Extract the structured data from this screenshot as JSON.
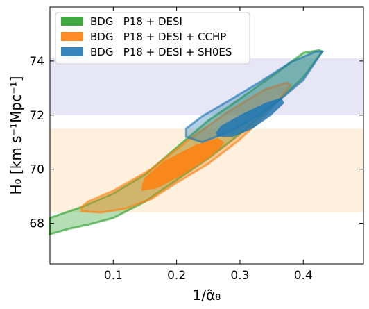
{
  "chart_data": {
    "type": "contour",
    "xlabel": "1/α̃₈",
    "ylabel": "H₀ [km s⁻¹Mpc⁻¹]",
    "xlim": [
      0.0,
      0.495
    ],
    "ylim": [
      66.5,
      76.0
    ],
    "x_ticks": [
      0.1,
      0.2,
      0.3,
      0.4
    ],
    "y_ticks": [
      68,
      70,
      72,
      74
    ],
    "grid": false,
    "legend_position": "top-left",
    "bands": [
      {
        "name": "upper band",
        "y_range": [
          72.0,
          74.1
        ],
        "color": "#e6e6f4"
      },
      {
        "name": "lower band",
        "y_range": [
          68.4,
          71.5
        ],
        "color": "#fff0dd"
      }
    ],
    "series": [
      {
        "name": "BDG   P18 + DESI",
        "color": "#2ca02c",
        "outer_contour": [
          [
            0.0,
            67.6
          ],
          [
            0.03,
            67.8
          ],
          [
            0.06,
            67.95
          ],
          [
            0.1,
            68.2
          ],
          [
            0.15,
            68.8
          ],
          [
            0.2,
            69.6
          ],
          [
            0.25,
            70.4
          ],
          [
            0.3,
            71.3
          ],
          [
            0.35,
            72.3
          ],
          [
            0.4,
            73.4
          ],
          [
            0.43,
            74.35
          ],
          [
            0.425,
            74.4
          ],
          [
            0.4,
            74.3
          ],
          [
            0.36,
            73.6
          ],
          [
            0.3,
            72.6
          ],
          [
            0.25,
            71.8
          ],
          [
            0.2,
            70.8
          ],
          [
            0.15,
            69.8
          ],
          [
            0.1,
            69.1
          ],
          [
            0.05,
            68.6
          ],
          [
            0.0,
            68.2
          ]
        ],
        "inner_contour": []
      },
      {
        "name": "BDG   P18 + DESI + CCHP",
        "color": "#ff7f0e",
        "outer_contour": [
          [
            0.05,
            68.45
          ],
          [
            0.08,
            68.4
          ],
          [
            0.12,
            68.55
          ],
          [
            0.16,
            68.9
          ],
          [
            0.2,
            69.5
          ],
          [
            0.25,
            70.2
          ],
          [
            0.3,
            71.1
          ],
          [
            0.34,
            72.0
          ],
          [
            0.37,
            72.8
          ],
          [
            0.38,
            73.1
          ],
          [
            0.375,
            73.2
          ],
          [
            0.34,
            72.95
          ],
          [
            0.28,
            72.1
          ],
          [
            0.22,
            71.1
          ],
          [
            0.16,
            70.0
          ],
          [
            0.1,
            69.2
          ],
          [
            0.06,
            68.8
          ],
          [
            0.05,
            68.6
          ]
        ],
        "inner_contour": [
          [
            0.145,
            69.2
          ],
          [
            0.17,
            69.3
          ],
          [
            0.21,
            69.8
          ],
          [
            0.25,
            70.4
          ],
          [
            0.27,
            70.8
          ],
          [
            0.275,
            71.0
          ],
          [
            0.265,
            71.15
          ],
          [
            0.23,
            70.9
          ],
          [
            0.18,
            70.3
          ],
          [
            0.15,
            69.7
          ],
          [
            0.145,
            69.4
          ]
        ]
      },
      {
        "name": "BDG   P18 + DESI + SH0ES",
        "color": "#1f77b4",
        "outer_contour": [
          [
            0.215,
            71.2
          ],
          [
            0.24,
            71.0
          ],
          [
            0.28,
            71.35
          ],
          [
            0.33,
            72.0
          ],
          [
            0.37,
            72.7
          ],
          [
            0.4,
            73.3
          ],
          [
            0.43,
            74.35
          ],
          [
            0.42,
            74.35
          ],
          [
            0.38,
            73.95
          ],
          [
            0.33,
            73.2
          ],
          [
            0.28,
            72.5
          ],
          [
            0.24,
            71.95
          ],
          [
            0.215,
            71.5
          ]
        ],
        "inner_contour": [
          [
            0.265,
            71.2
          ],
          [
            0.29,
            71.2
          ],
          [
            0.32,
            71.5
          ],
          [
            0.35,
            72.0
          ],
          [
            0.37,
            72.45
          ],
          [
            0.365,
            72.65
          ],
          [
            0.34,
            72.45
          ],
          [
            0.3,
            72.0
          ],
          [
            0.27,
            71.6
          ],
          [
            0.262,
            71.35
          ]
        ]
      }
    ]
  }
}
